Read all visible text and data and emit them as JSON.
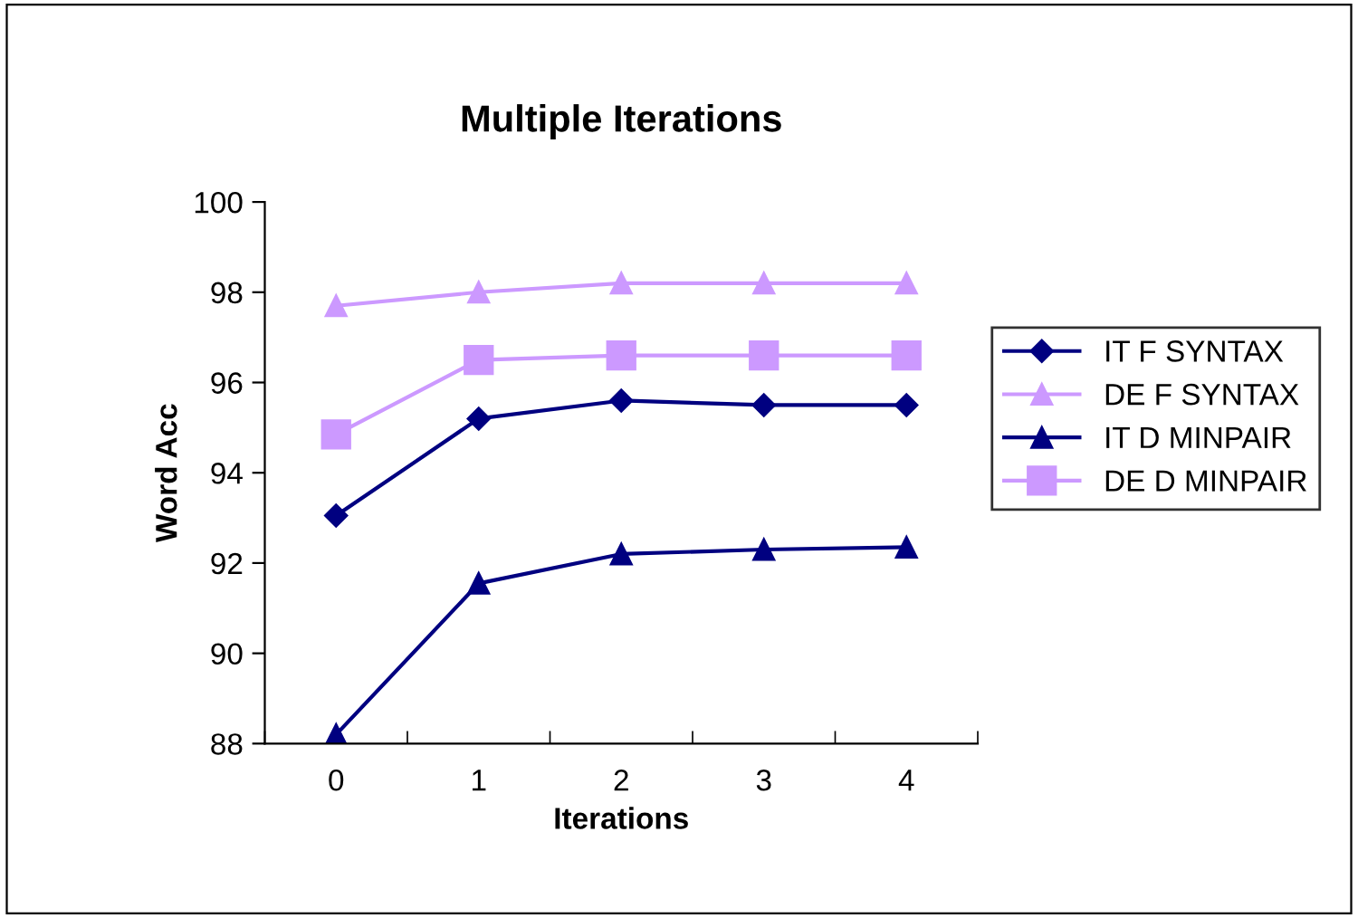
{
  "chart_data": {
    "type": "line",
    "title": "Multiple Iterations",
    "xlabel": "Iterations",
    "ylabel": "Word Acc",
    "categories": [
      "0",
      "1",
      "2",
      "3",
      "4"
    ],
    "series": [
      {
        "name": "IT F SYNTAX",
        "color": "#000080",
        "marker": "diamond",
        "values": [
          93.05,
          95.2,
          95.6,
          95.5,
          95.5
        ]
      },
      {
        "name": "DE F SYNTAX",
        "color": "#cc99ff",
        "marker": "triangle",
        "values": [
          97.7,
          98.0,
          98.2,
          98.2,
          98.2
        ]
      },
      {
        "name": "IT D MINPAIR",
        "color": "#000080",
        "marker": "triangle",
        "values": [
          88.2,
          91.55,
          92.2,
          92.3,
          92.35
        ]
      },
      {
        "name": "DE D MINPAIR",
        "color": "#cc99ff",
        "marker": "square",
        "values": [
          94.85,
          96.5,
          96.6,
          96.6,
          96.6
        ]
      }
    ],
    "ylim": [
      88,
      100
    ],
    "yticks": [
      88,
      90,
      92,
      94,
      96,
      98,
      100
    ],
    "grid": false,
    "legend": "right",
    "line_style": "solid"
  }
}
